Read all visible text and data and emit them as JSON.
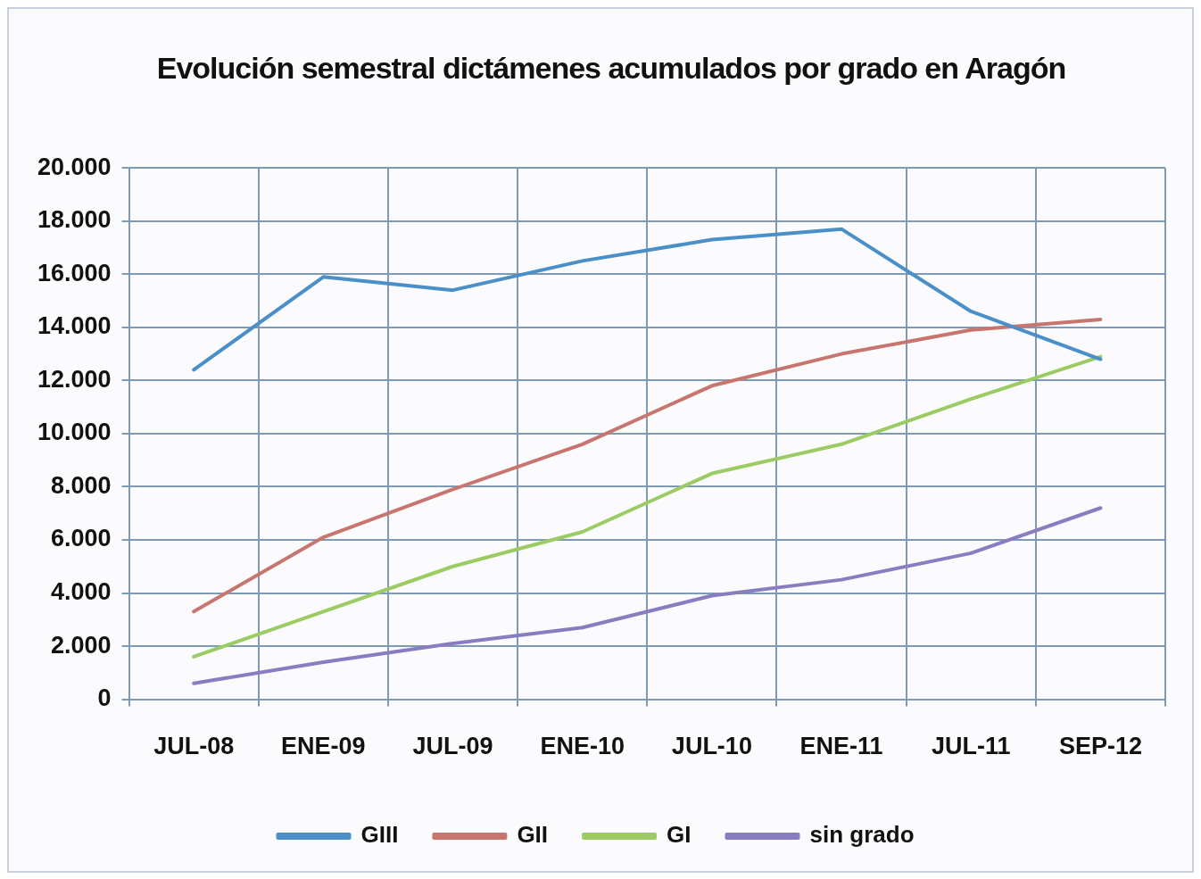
{
  "chart_data": {
    "type": "line",
    "title": "Evolución semestral dictámenes acumulados por grado en Aragón",
    "categories": [
      "JUL-08",
      "ENE-09",
      "JUL-09",
      "ENE-10",
      "JUL-10",
      "ENE-11",
      "JUL-11",
      "SEP-12"
    ],
    "series": [
      {
        "name": "GIII",
        "color": "#4a8fc7",
        "values": [
          12400,
          15900,
          15400,
          16500,
          17300,
          17700,
          14600,
          12800
        ]
      },
      {
        "name": "GII",
        "color": "#c8756f",
        "values": [
          3300,
          6100,
          7900,
          9600,
          11800,
          13000,
          13900,
          14300
        ]
      },
      {
        "name": "GI",
        "color": "#9bcc64",
        "values": [
          1600,
          3300,
          5000,
          6300,
          8500,
          9600,
          11300,
          12900
        ]
      },
      {
        "name": "sin grado",
        "color": "#8a7cc0",
        "values": [
          600,
          1400,
          2100,
          2700,
          3900,
          4500,
          5500,
          7200
        ]
      }
    ],
    "ylim": [
      0,
      20000
    ],
    "yticks": [
      0,
      {
        "value": 2000,
        "label": "2.000"
      },
      {
        "value": 4000,
        "label": "4.000"
      },
      {
        "value": 6000,
        "label": "6.000"
      },
      {
        "value": 8000,
        "label": "8.000"
      },
      {
        "value": 10000,
        "label": "10.000"
      },
      {
        "value": 12000,
        "label": "12.000"
      },
      {
        "value": 14000,
        "label": "14.000"
      },
      {
        "value": 16000,
        "label": "16.000"
      },
      {
        "value": 18000,
        "label": "18.000"
      },
      {
        "value": 20000,
        "label": "20.000"
      }
    ],
    "grid": true,
    "legend": "bottom",
    "marker": "none",
    "line_style": "solid"
  }
}
